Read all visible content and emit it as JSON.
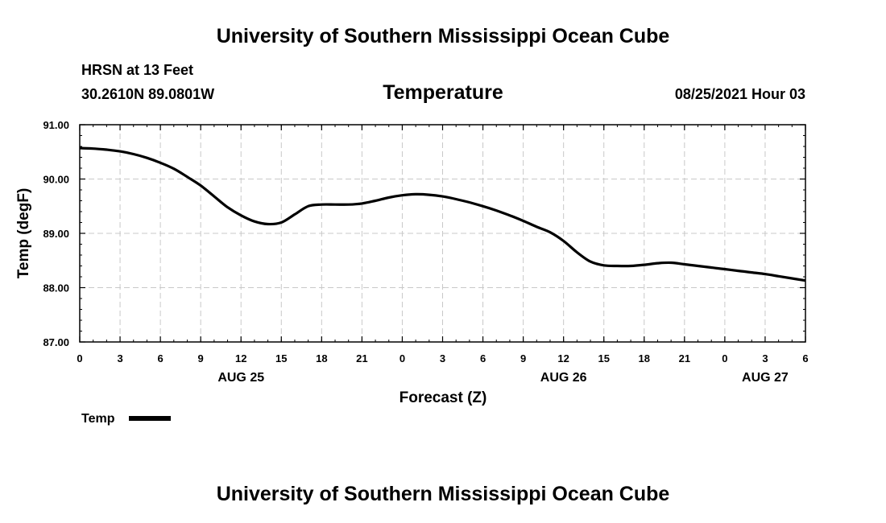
{
  "header": {
    "title": "University of Southern Mississippi Ocean Cube",
    "station": "HRSN at 13 Feet",
    "coords": "30.2610N  89.0801W",
    "variable": "Temperature",
    "valid_time": "08/25/2021 Hour 03"
  },
  "footer": {
    "title": "University of Southern Mississippi Ocean Cube"
  },
  "chart_data": {
    "type": "line",
    "xlabel": "Forecast (Z)",
    "ylabel": "Temp (degF)",
    "x_ticks": [
      "0",
      "3",
      "6",
      "9",
      "12",
      "15",
      "18",
      "21",
      "0",
      "3",
      "6",
      "9",
      "12",
      "15",
      "18",
      "21",
      "0",
      "3",
      "6"
    ],
    "day_labels": [
      {
        "label": "AUG 25",
        "hour": 12
      },
      {
        "label": "AUG 26",
        "hour": 36
      },
      {
        "label": "AUG 27",
        "hour": 51
      }
    ],
    "xlim": [
      0,
      54
    ],
    "ylim": [
      87.0,
      91.0
    ],
    "y_ticks": [
      "87.00",
      "88.00",
      "89.00",
      "90.00",
      "91.00"
    ],
    "grid": true,
    "legend_position": "bottom-left",
    "series": [
      {
        "name": "Temp",
        "color": "#000000",
        "x": [
          0,
          1,
          2,
          3,
          4,
          5,
          6,
          7,
          8,
          9,
          10,
          11,
          12,
          13,
          14,
          15,
          16,
          17,
          18,
          19,
          20,
          21,
          22,
          23,
          24,
          25,
          26,
          27,
          28,
          29,
          30,
          31,
          32,
          33,
          34,
          35,
          36,
          37,
          38,
          39,
          40,
          41,
          42,
          43,
          44,
          45,
          46,
          47,
          48,
          49,
          50,
          51,
          52,
          53,
          54
        ],
        "values": [
          90.57,
          90.56,
          90.54,
          90.51,
          90.46,
          90.39,
          90.3,
          90.19,
          90.04,
          89.88,
          89.68,
          89.48,
          89.33,
          89.22,
          89.17,
          89.2,
          89.35,
          89.5,
          89.53,
          89.53,
          89.53,
          89.55,
          89.6,
          89.66,
          89.7,
          89.72,
          89.71,
          89.68,
          89.63,
          89.57,
          89.5,
          89.42,
          89.33,
          89.23,
          89.12,
          89.02,
          88.86,
          88.65,
          88.48,
          88.41,
          88.4,
          88.4,
          88.42,
          88.45,
          88.46,
          88.43,
          88.4,
          88.37,
          88.34,
          88.31,
          88.28,
          88.25,
          88.21,
          88.17,
          88.13
        ]
      }
    ]
  }
}
